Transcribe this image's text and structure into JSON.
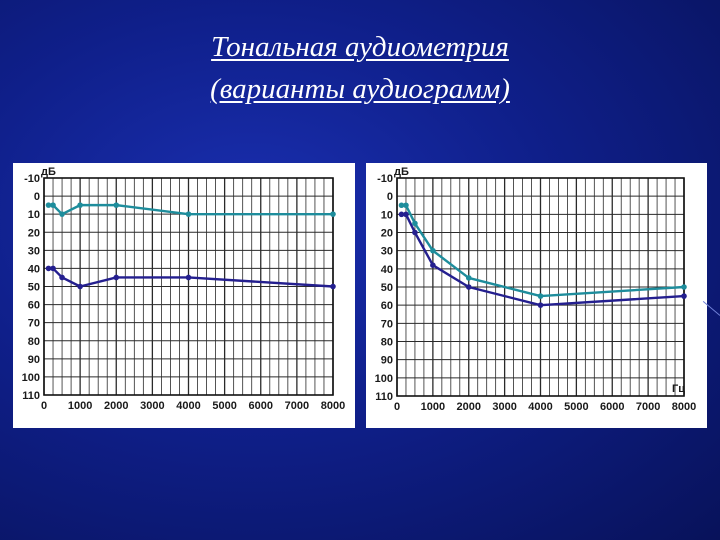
{
  "title": {
    "line1": "Тональная аудиометрия",
    "line2": "(варианты аудиограмм)"
  },
  "colors": {
    "background": "#10208c",
    "series_teal": "#1e8d9c",
    "series_navy": "#241f8f",
    "grid": "#2a2a2a"
  },
  "chart_data": [
    {
      "type": "line",
      "ylabel": "дБ",
      "xlabel": "",
      "x_ticks": [
        0,
        1000,
        2000,
        3000,
        4000,
        5000,
        6000,
        7000,
        8000
      ],
      "y_ticks": [
        -10,
        0,
        10,
        20,
        30,
        40,
        50,
        60,
        70,
        80,
        90,
        100,
        110
      ],
      "xlim": [
        0,
        8000
      ],
      "ylim": [
        -10,
        110
      ],
      "y_inverted": true,
      "grid": true,
      "series": [
        {
          "color": "#1e8d9c",
          "x": [
            125,
            250,
            500,
            1000,
            2000,
            4000,
            8000
          ],
          "y": [
            5,
            5,
            10,
            5,
            5,
            10,
            10
          ]
        },
        {
          "color": "#241f8f",
          "x": [
            125,
            250,
            500,
            1000,
            2000,
            4000,
            8000
          ],
          "y": [
            40,
            40,
            45,
            50,
            45,
            45,
            50
          ]
        }
      ]
    },
    {
      "type": "line",
      "ylabel": "дБ",
      "xlabel": "Гц",
      "x_ticks": [
        0,
        1000,
        2000,
        3000,
        4000,
        5000,
        6000,
        7000,
        8000
      ],
      "y_ticks": [
        -10,
        0,
        10,
        20,
        30,
        40,
        50,
        60,
        70,
        80,
        90,
        100,
        110
      ],
      "xlim": [
        0,
        8000
      ],
      "ylim": [
        -10,
        110
      ],
      "y_inverted": true,
      "grid": true,
      "series": [
        {
          "color": "#1e8d9c",
          "x": [
            125,
            250,
            500,
            1000,
            2000,
            4000,
            8000
          ],
          "y": [
            5,
            5,
            15,
            30,
            45,
            55,
            50
          ]
        },
        {
          "color": "#241f8f",
          "x": [
            125,
            250,
            500,
            1000,
            2000,
            4000,
            8000
          ],
          "y": [
            10,
            10,
            20,
            38,
            50,
            60,
            55
          ]
        }
      ]
    }
  ]
}
